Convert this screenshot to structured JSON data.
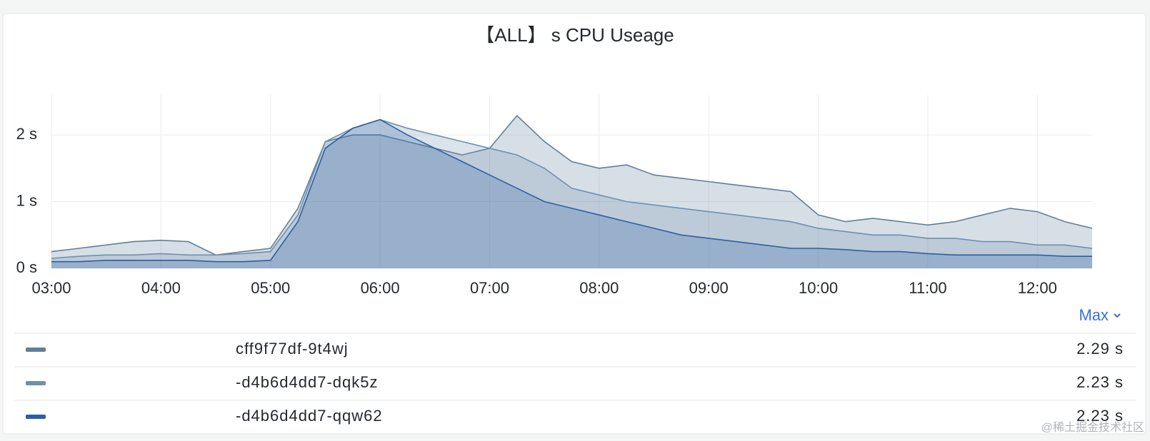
{
  "chart_data": {
    "type": "line",
    "title": "【ALL】 s CPU Useage",
    "x": [
      "03:00",
      "03:15",
      "03:30",
      "03:45",
      "04:00",
      "04:15",
      "04:30",
      "04:45",
      "05:00",
      "05:15",
      "05:30",
      "05:45",
      "06:00",
      "06:15",
      "06:30",
      "06:45",
      "07:00",
      "07:15",
      "07:30",
      "07:45",
      "08:00",
      "08:15",
      "08:30",
      "08:45",
      "09:00",
      "09:15",
      "09:30",
      "09:45",
      "10:00",
      "10:15",
      "10:30",
      "10:45",
      "11:00",
      "11:15",
      "11:30",
      "11:45",
      "12:00",
      "12:15",
      "12:30"
    ],
    "ylim": [
      0,
      2.6
    ],
    "yticks": [
      {
        "value": 0,
        "label": "0 s"
      },
      {
        "value": 1,
        "label": "1 s"
      },
      {
        "value": 2,
        "label": "2 s"
      }
    ],
    "grid": true,
    "legend_header": "Max",
    "series": [
      {
        "name": "cff9f77df-9t4wj",
        "color": "#5f7f9a",
        "values": [
          0.25,
          0.3,
          0.35,
          0.4,
          0.42,
          0.4,
          0.2,
          0.25,
          0.3,
          0.9,
          1.9,
          2.0,
          2.0,
          1.9,
          1.8,
          1.7,
          1.8,
          2.29,
          1.9,
          1.6,
          1.5,
          1.55,
          1.4,
          1.35,
          1.3,
          1.25,
          1.2,
          1.15,
          0.8,
          0.7,
          0.75,
          0.7,
          0.65,
          0.7,
          0.8,
          0.9,
          0.85,
          0.7,
          0.6
        ],
        "max": 2.29,
        "max_label": "2.29 s"
      },
      {
        "name": "-d4b6d4dd7-dqk5z",
        "color": "#6f8fb0",
        "values": [
          0.15,
          0.18,
          0.2,
          0.2,
          0.22,
          0.2,
          0.2,
          0.22,
          0.25,
          0.8,
          1.9,
          2.1,
          2.23,
          2.1,
          2.0,
          1.9,
          1.8,
          1.7,
          1.5,
          1.2,
          1.1,
          1.0,
          0.95,
          0.9,
          0.85,
          0.8,
          0.75,
          0.7,
          0.6,
          0.55,
          0.5,
          0.5,
          0.45,
          0.45,
          0.4,
          0.4,
          0.35,
          0.35,
          0.3
        ],
        "max": 2.23,
        "max_label": "2.23 s"
      },
      {
        "name": "-d4b6d4dd7-qqw62",
        "color": "#2d5fa3",
        "values": [
          0.1,
          0.1,
          0.12,
          0.12,
          0.12,
          0.12,
          0.1,
          0.1,
          0.12,
          0.7,
          1.8,
          2.1,
          2.23,
          2.0,
          1.8,
          1.6,
          1.4,
          1.2,
          1.0,
          0.9,
          0.8,
          0.7,
          0.6,
          0.5,
          0.45,
          0.4,
          0.35,
          0.3,
          0.3,
          0.28,
          0.25,
          0.25,
          0.22,
          0.2,
          0.2,
          0.2,
          0.2,
          0.18,
          0.18
        ],
        "max": 2.23,
        "max_label": "2.23 s"
      }
    ],
    "watermark": "@稀土掘金技术社区"
  }
}
